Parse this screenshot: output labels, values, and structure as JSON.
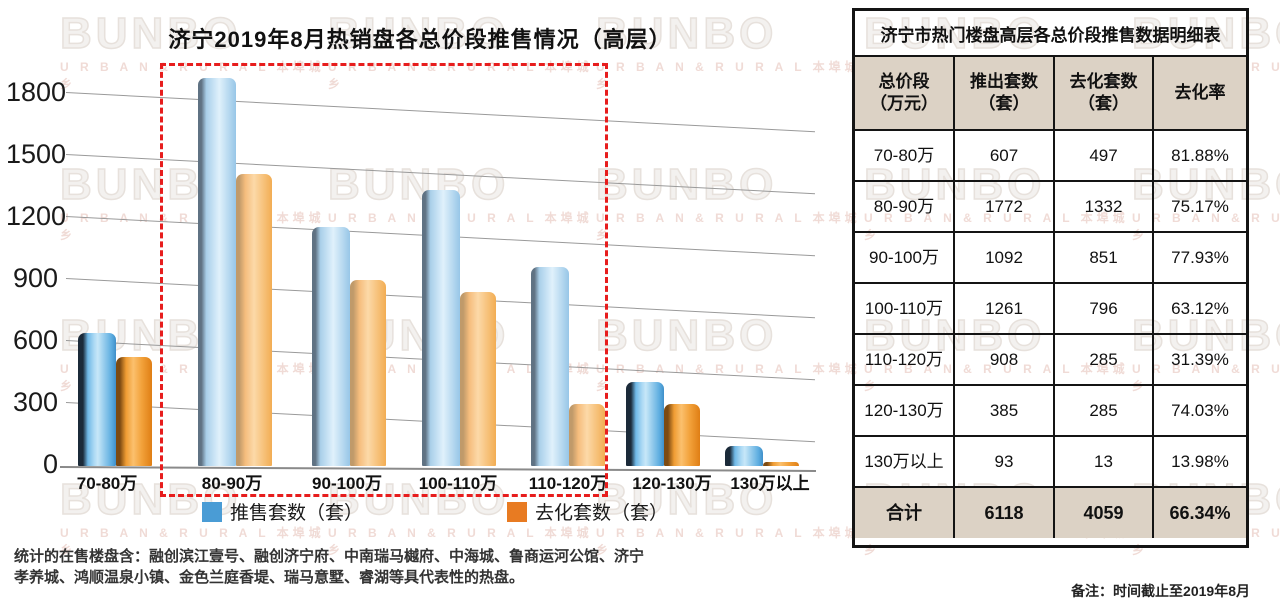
{
  "watermark": {
    "brand": "BUNBO",
    "subtitle": "U R B A N  &  R U R A L  本埠城乡"
  },
  "chart": {
    "title": "济宁2019年8月热销盘各总价段推售情况（高层）",
    "legend": [
      {
        "label": "推售套数（套）",
        "color": "#4a9cd5"
      },
      {
        "label": "去化套数（套）",
        "color": "#e87b22"
      }
    ],
    "footnote": "统计的在售楼盘含：融创滨江壹号、融创济宁府、中南瑞马樾府、中海城、鲁商运河公馆、济宁孝养城、鸿顺温泉小镇、金色兰庭香堤、瑞马意墅、睿湖等具代表性的热盘。"
  },
  "chart_data": {
    "type": "bar",
    "title": "济宁2019年8月热销盘各总价段推售情况（高层）",
    "categories": [
      "70-80万",
      "80-90万",
      "90-100万",
      "100-110万",
      "110-120万",
      "120-130万",
      "130万以上"
    ],
    "series": [
      {
        "name": "推售套数（套）",
        "color": "#4a9cd5",
        "values": [
          607,
          1772,
          1092,
          1261,
          908,
          385,
          93
        ]
      },
      {
        "name": "去化套数（套）",
        "color": "#e87b22",
        "values": [
          497,
          1332,
          851,
          796,
          285,
          285,
          13
        ]
      }
    ],
    "y_ticks": [
      0,
      300,
      600,
      900,
      1200,
      1500,
      1800
    ],
    "ylim": [
      0,
      1800
    ],
    "grid": true,
    "legend_position": "bottom",
    "highlight_box_categories": [
      "80-90万",
      "90-100万",
      "100-110万",
      "110-120万"
    ]
  },
  "table": {
    "title": "济宁市热门楼盘高层各总价段推售数据明细表",
    "columns": [
      "总价段\n（万元）",
      "推出套数\n（套）",
      "去化套数\n（套）",
      "去化率"
    ],
    "rows": [
      [
        "70-80万",
        "607",
        "497",
        "81.88%"
      ],
      [
        "80-90万",
        "1772",
        "1332",
        "75.17%"
      ],
      [
        "90-100万",
        "1092",
        "851",
        "77.93%"
      ],
      [
        "100-110万",
        "1261",
        "796",
        "63.12%"
      ],
      [
        "110-120万",
        "908",
        "285",
        "31.39%"
      ],
      [
        "120-130万",
        "385",
        "285",
        "74.03%"
      ],
      [
        "130万以上",
        "93",
        "13",
        "13.98%"
      ]
    ],
    "total": [
      "合计",
      "6118",
      "4059",
      "66.34%"
    ]
  },
  "note": "备注：时间截止至2019年8月"
}
